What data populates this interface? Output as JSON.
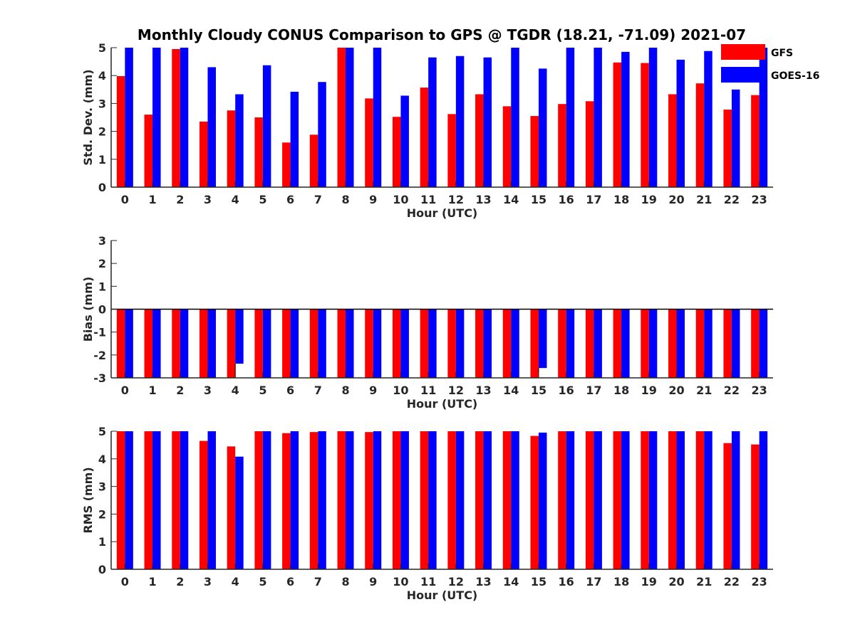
{
  "chart_data": {
    "title": "Monthly Cloudy CONUS Comparison to GPS @ TGDR (18.21, -71.09) 2021-07",
    "legend": {
      "placement": "top-right",
      "entries": [
        {
          "name": "GFS",
          "color": "#ff0000"
        },
        {
          "name": "GOES-16",
          "color": "#0000ff"
        }
      ]
    },
    "panels": [
      {
        "type": "bar",
        "ylabel": "Std. Dev. (mm)",
        "xlabel": "Hour (UTC)",
        "ylim": [
          0,
          5
        ],
        "yticks": [
          0,
          1,
          2,
          3,
          4,
          5
        ],
        "categories": [
          "0",
          "1",
          "2",
          "3",
          "4",
          "5",
          "6",
          "7",
          "8",
          "9",
          "10",
          "11",
          "12",
          "13",
          "14",
          "15",
          "16",
          "17",
          "18",
          "19",
          "20",
          "21",
          "22",
          "23"
        ],
        "series": [
          {
            "name": "GFS",
            "color": "#ff0000",
            "values": [
              3.98,
              2.6,
              4.95,
              2.35,
              2.75,
              2.5,
              1.6,
              1.88,
              5.0,
              3.18,
              2.52,
              3.57,
              2.62,
              3.33,
              2.9,
              2.55,
              2.98,
              3.08,
              4.47,
              4.45,
              3.33,
              3.72,
              2.78,
              3.3
            ]
          },
          {
            "name": "GOES-16",
            "color": "#0000ff",
            "values": [
              5.0,
              5.0,
              5.0,
              4.3,
              3.33,
              4.37,
              3.42,
              3.77,
              5.0,
              5.0,
              3.28,
              4.65,
              4.7,
              4.65,
              5.0,
              4.25,
              5.0,
              5.0,
              4.85,
              5.0,
              4.57,
              4.88,
              3.5,
              5.0
            ]
          }
        ]
      },
      {
        "type": "bar",
        "ylabel": "Bias (mm)",
        "xlabel": "Hour (UTC)",
        "ylim": [
          -3,
          3
        ],
        "yticks": [
          -3,
          -2,
          -1,
          0,
          1,
          2,
          3
        ],
        "categories": [
          "0",
          "1",
          "2",
          "3",
          "4",
          "5",
          "6",
          "7",
          "8",
          "9",
          "10",
          "11",
          "12",
          "13",
          "14",
          "15",
          "16",
          "17",
          "18",
          "19",
          "20",
          "21",
          "22",
          "23"
        ],
        "series": [
          {
            "name": "GFS",
            "color": "#ff0000",
            "values": [
              -3,
              -3,
              -3,
              -3,
              -3,
              -3,
              -3,
              -3,
              -3,
              -3,
              -3,
              -3,
              -3,
              -3,
              -3,
              -3,
              -3,
              -3,
              -3,
              -3,
              -3,
              -3,
              -3,
              -3
            ]
          },
          {
            "name": "GOES-16",
            "color": "#0000ff",
            "values": [
              -3,
              -3,
              -3,
              -3,
              -2.38,
              -3,
              -3,
              -3,
              -3,
              -3,
              -3,
              -3,
              -3,
              -3,
              -3,
              -2.57,
              -3,
              -3,
              -3,
              -3,
              -3,
              -3,
              -3,
              -3
            ]
          }
        ]
      },
      {
        "type": "bar",
        "ylabel": "RMS (mm)",
        "xlabel": "Hour (UTC)",
        "ylim": [
          0,
          5
        ],
        "yticks": [
          0,
          1,
          2,
          3,
          4,
          5
        ],
        "categories": [
          "0",
          "1",
          "2",
          "3",
          "4",
          "5",
          "6",
          "7",
          "8",
          "9",
          "10",
          "11",
          "12",
          "13",
          "14",
          "15",
          "16",
          "17",
          "18",
          "19",
          "20",
          "21",
          "22",
          "23"
        ],
        "series": [
          {
            "name": "GFS",
            "color": "#ff0000",
            "values": [
              5.0,
              5.0,
              5.0,
              4.65,
              4.45,
              5.0,
              4.93,
              4.97,
              5.0,
              4.97,
              5.0,
              5.0,
              5.0,
              5.0,
              5.0,
              4.83,
              5.0,
              5.0,
              5.0,
              5.0,
              5.0,
              5.0,
              4.57,
              4.52
            ]
          },
          {
            "name": "GOES-16",
            "color": "#0000ff",
            "values": [
              5.0,
              5.0,
              5.0,
              5.0,
              4.08,
              5.0,
              5.0,
              5.0,
              5.0,
              5.0,
              5.0,
              5.0,
              5.0,
              5.0,
              5.0,
              4.95,
              5.0,
              5.0,
              5.0,
              5.0,
              5.0,
              5.0,
              5.0,
              5.0
            ]
          }
        ]
      }
    ]
  }
}
